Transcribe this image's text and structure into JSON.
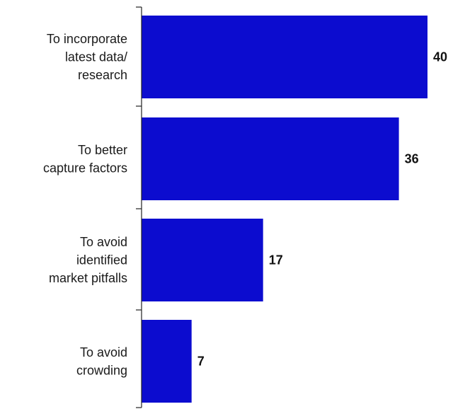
{
  "chart_data": {
    "type": "bar",
    "orientation": "horizontal",
    "categories": [
      [
        "To incorporate",
        "latest data/",
        "research"
      ],
      [
        "To better",
        "capture factors"
      ],
      [
        "To avoid",
        "identified",
        "market pitfalls"
      ],
      [
        "To avoid",
        "crowding"
      ]
    ],
    "values": [
      40,
      36,
      17,
      7
    ],
    "title": "",
    "xlabel": "",
    "ylabel": "",
    "xlim": [
      0,
      40
    ],
    "grid": false,
    "legend": "none",
    "colors": {
      "bar": "#0c0ccf",
      "axis": "#222222",
      "text": "#1a1a1a"
    }
  }
}
